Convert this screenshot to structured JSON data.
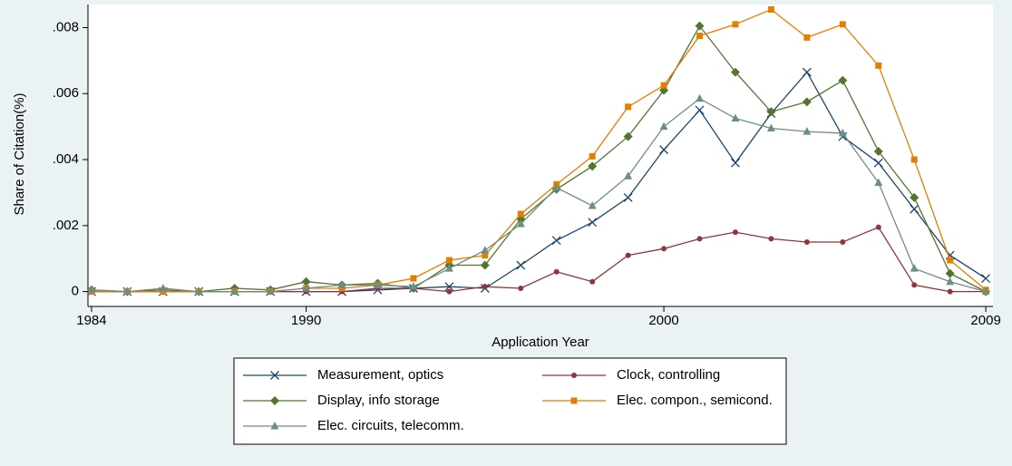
{
  "chart_data": {
    "type": "line",
    "xlabel": "Application Year",
    "ylabel": "Share of Citation(%)",
    "x": [
      1984,
      1985,
      1986,
      1987,
      1988,
      1989,
      1990,
      1991,
      1992,
      1993,
      1994,
      1995,
      1996,
      1997,
      1998,
      1999,
      2000,
      2001,
      2002,
      2003,
      2004,
      2005,
      2006,
      2007,
      2008,
      2009
    ],
    "xlim": [
      1983.9,
      2009.2
    ],
    "xticks": [
      1984,
      1990,
      2000,
      2009
    ],
    "ylim": [
      -0.00045,
      0.0087
    ],
    "yticks": [
      0,
      {
        "value": 0.002,
        "label": ".002"
      },
      {
        "value": 0.004,
        "label": ".004"
      },
      {
        "value": 0.006,
        "label": ".006"
      },
      {
        "value": 0.008,
        "label": ".008"
      }
    ],
    "grid": false,
    "series": [
      {
        "name": "Measurement, optics",
        "color": "#1a476f",
        "marker": "x",
        "values": [
          0,
          0,
          0,
          0,
          0,
          0,
          0,
          0,
          5e-05,
          0.0001,
          0.00015,
          0.0001,
          0.0008,
          0.00155,
          0.0021,
          0.00285,
          0.0043,
          0.0055,
          0.0039,
          0.0054,
          0.00665,
          0.0047,
          0.0039,
          0.0025,
          0.0011,
          0.0004
        ]
      },
      {
        "name": "Clock, controlling",
        "color": "#90353b",
        "marker": "circle",
        "values": [
          0,
          0,
          0,
          0,
          0,
          0,
          0,
          0,
          0.0001,
          0.0001,
          0,
          0.00015,
          0.0001,
          0.0006,
          0.0003,
          0.0011,
          0.0013,
          0.0016,
          0.0018,
          0.0016,
          0.0015,
          0.0015,
          0.00195,
          0.0002,
          0,
          0
        ]
      },
      {
        "name": "Display, info storage",
        "color": "#55752f",
        "marker": "diamond",
        "values": [
          5e-05,
          0,
          5e-05,
          0,
          0.0001,
          5e-05,
          0.0003,
          0.0002,
          0.00025,
          0.0001,
          0.0008,
          0.0008,
          0.0022,
          0.0031,
          0.0038,
          0.0047,
          0.0061,
          0.00805,
          0.00665,
          0.00545,
          0.00575,
          0.0064,
          0.00425,
          0.00285,
          0.00055,
          0
        ]
      },
      {
        "name": "Elec. compon., semicond.",
        "color": "#e37e00",
        "marker": "square",
        "values": [
          0,
          0,
          0,
          0,
          0,
          0,
          0.0001,
          0.0001,
          0.0002,
          0.0004,
          0.00095,
          0.0011,
          0.00235,
          0.00325,
          0.0041,
          0.0056,
          0.00625,
          0.00775,
          0.0081,
          0.00855,
          0.0077,
          0.0081,
          0.00685,
          0.004,
          0.00095,
          5e-05
        ]
      },
      {
        "name": "Elec. circuits, telecomm.",
        "color": "#6e8e84",
        "marker": "triangle",
        "values": [
          5e-05,
          0,
          0.0001,
          0,
          0,
          0,
          0.0001,
          0.0002,
          0.0002,
          0.00015,
          0.0007,
          0.00125,
          0.00205,
          0.00315,
          0.0026,
          0.0035,
          0.005,
          0.00585,
          0.00525,
          0.00495,
          0.00485,
          0.0048,
          0.0033,
          0.0007,
          0.0003,
          0
        ]
      }
    ]
  }
}
